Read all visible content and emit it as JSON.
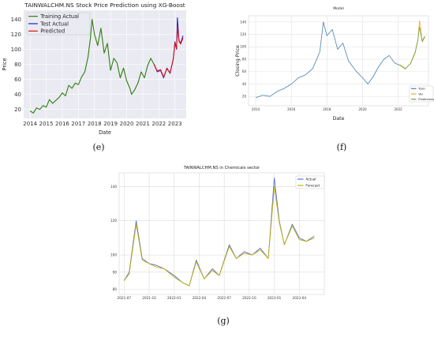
{
  "captions": {
    "e": "(e)",
    "f": "(f)",
    "g": "(g)"
  },
  "chart_data": [
    {
      "id": "e",
      "type": "line",
      "title": "TAINWALCHM.NS Stock Price Prediction using XG-Boost",
      "xlabel": "Date",
      "ylabel": "Price",
      "xlim": [
        2013.6,
        2023.7
      ],
      "ylim": [
        8,
        152
      ],
      "xticks": [
        "2014",
        "2015",
        "2016",
        "2017",
        "2018",
        "2019",
        "2020",
        "2021",
        "2022",
        "2023"
      ],
      "yticks": [
        20,
        40,
        60,
        80,
        100,
        120,
        140
      ],
      "grid": true,
      "legend_position": "top-left",
      "background": "#eaeaf2",
      "series": [
        {
          "name": "Training Actual",
          "color": "#2e7d0f",
          "x": [
            2014.0,
            2014.2,
            2014.4,
            2014.6,
            2014.8,
            2015.0,
            2015.2,
            2015.4,
            2015.6,
            2015.8,
            2016.0,
            2016.2,
            2016.4,
            2016.6,
            2016.8,
            2017.0,
            2017.2,
            2017.4,
            2017.6,
            2017.75,
            2017.85,
            2018.0,
            2018.2,
            2018.4,
            2018.6,
            2018.8,
            2019.0,
            2019.2,
            2019.4,
            2019.6,
            2019.8,
            2020.0,
            2020.2,
            2020.3,
            2020.5,
            2020.7,
            2020.9,
            2021.1,
            2021.3,
            2021.5,
            2021.7
          ],
          "values": [
            18,
            15,
            22,
            20,
            25,
            23,
            33,
            28,
            32,
            36,
            42,
            38,
            52,
            48,
            55,
            53,
            63,
            70,
            90,
            115,
            140,
            120,
            105,
            128,
            95,
            108,
            72,
            88,
            82,
            62,
            75,
            58,
            48,
            40,
            46,
            55,
            70,
            62,
            78,
            88,
            80
          ]
        },
        {
          "name": "Test Actual",
          "color": "#1f1fcc",
          "x": [
            2021.7,
            2021.9,
            2022.1,
            2022.3,
            2022.5,
            2022.7,
            2022.9,
            2023.0,
            2023.1,
            2023.15,
            2023.25,
            2023.35,
            2023.5
          ],
          "values": [
            80,
            70,
            72,
            62,
            75,
            68,
            88,
            110,
            100,
            142,
            112,
            108,
            118
          ]
        },
        {
          "name": "Predicted",
          "color": "#e01010",
          "x": [
            2021.7,
            2021.9,
            2022.1,
            2022.3,
            2022.5,
            2022.7,
            2022.9,
            2023.0,
            2023.1,
            2023.15,
            2023.25,
            2023.35,
            2023.5
          ],
          "values": [
            80,
            71,
            73,
            63,
            74,
            69,
            87,
            108,
            101,
            130,
            111,
            107,
            115
          ]
        }
      ]
    },
    {
      "id": "f",
      "type": "line",
      "title": "Model",
      "xlabel": "Date",
      "ylabel": "Closing Price",
      "xlim": [
        2013.6,
        2023.7
      ],
      "ylim": [
        5,
        150
      ],
      "xticks": [
        "2014",
        "2016",
        "2018",
        "2020",
        "2022"
      ],
      "yticks": [
        20,
        40,
        60,
        80,
        100,
        120,
        140
      ],
      "grid": true,
      "legend_position": "bottom-right",
      "series": [
        {
          "name": "Train",
          "color": "#4a7fb5",
          "x": [
            2014.0,
            2014.4,
            2014.8,
            2015.2,
            2015.6,
            2016.0,
            2016.4,
            2016.8,
            2017.2,
            2017.6,
            2017.8,
            2018.0,
            2018.3,
            2018.6,
            2018.9,
            2019.2,
            2019.6,
            2020.0,
            2020.3,
            2020.6,
            2020.9,
            2021.2,
            2021.5,
            2021.8,
            2022.1
          ],
          "values": [
            18,
            22,
            20,
            28,
            33,
            40,
            50,
            55,
            65,
            92,
            140,
            118,
            128,
            96,
            106,
            78,
            62,
            50,
            40,
            52,
            68,
            80,
            86,
            74,
            70
          ]
        },
        {
          "name": "Val",
          "color": "#f0a830",
          "x": [
            2022.1,
            2022.4,
            2022.7,
            2022.95,
            2023.1,
            2023.2,
            2023.35,
            2023.5
          ],
          "values": [
            70,
            64,
            74,
            92,
            112,
            142,
            110,
            118
          ]
        },
        {
          "name": "Predictions",
          "color": "#6aa84f",
          "x": [
            2022.1,
            2022.4,
            2022.7,
            2022.95,
            2023.1,
            2023.2,
            2023.35,
            2023.5
          ],
          "values": [
            71,
            65,
            73,
            90,
            110,
            132,
            108,
            116
          ]
        }
      ]
    },
    {
      "id": "g",
      "type": "line",
      "title": "TAINWALCHM.NS in Chemicals sector",
      "xlabel": "",
      "ylabel": "",
      "xlim": [
        2021.45,
        2023.5
      ],
      "ylim": [
        77,
        148
      ],
      "xticks": [
        "2021-07",
        "2021-10",
        "2022-01",
        "2022-04",
        "2022-07",
        "2022-10",
        "2023-01",
        "2023-04"
      ],
      "xtick_values": [
        2021.5,
        2021.75,
        2022.0,
        2022.25,
        2022.5,
        2022.75,
        2023.0,
        2023.25
      ],
      "yticks": [
        80,
        90,
        100,
        120,
        140
      ],
      "grid": true,
      "legend_position": "top-right",
      "series": [
        {
          "name": "Actual",
          "color": "#5b6fd6",
          "x": [
            2021.5,
            2021.55,
            2021.62,
            2021.68,
            2021.75,
            2021.82,
            2021.9,
            2022.0,
            2022.08,
            2022.15,
            2022.22,
            2022.3,
            2022.38,
            2022.45,
            2022.55,
            2022.62,
            2022.7,
            2022.78,
            2022.86,
            2022.94,
            2023.0,
            2023.05,
            2023.1,
            2023.18,
            2023.25,
            2023.32,
            2023.4
          ],
          "values": [
            85,
            90,
            120,
            98,
            95,
            94,
            92,
            88,
            84,
            82,
            97,
            86,
            92,
            88,
            106,
            98,
            102,
            100,
            104,
            98,
            145,
            120,
            106,
            118,
            110,
            108,
            111
          ]
        },
        {
          "name": "Forecast",
          "color": "#bfb000",
          "x": [
            2021.5,
            2021.55,
            2021.62,
            2021.68,
            2021.75,
            2021.82,
            2021.9,
            2022.0,
            2022.08,
            2022.15,
            2022.22,
            2022.3,
            2022.38,
            2022.45,
            2022.55,
            2022.62,
            2022.7,
            2022.78,
            2022.86,
            2022.94,
            2023.0,
            2023.05,
            2023.1,
            2023.18,
            2023.25,
            2023.32,
            2023.4
          ],
          "values": [
            85,
            89,
            118,
            97,
            95,
            93,
            92,
            87,
            84,
            82,
            96,
            86,
            91,
            88,
            105,
            98,
            101,
            100,
            103,
            98,
            140,
            119,
            106,
            117,
            109,
            108,
            110
          ]
        }
      ]
    }
  ]
}
